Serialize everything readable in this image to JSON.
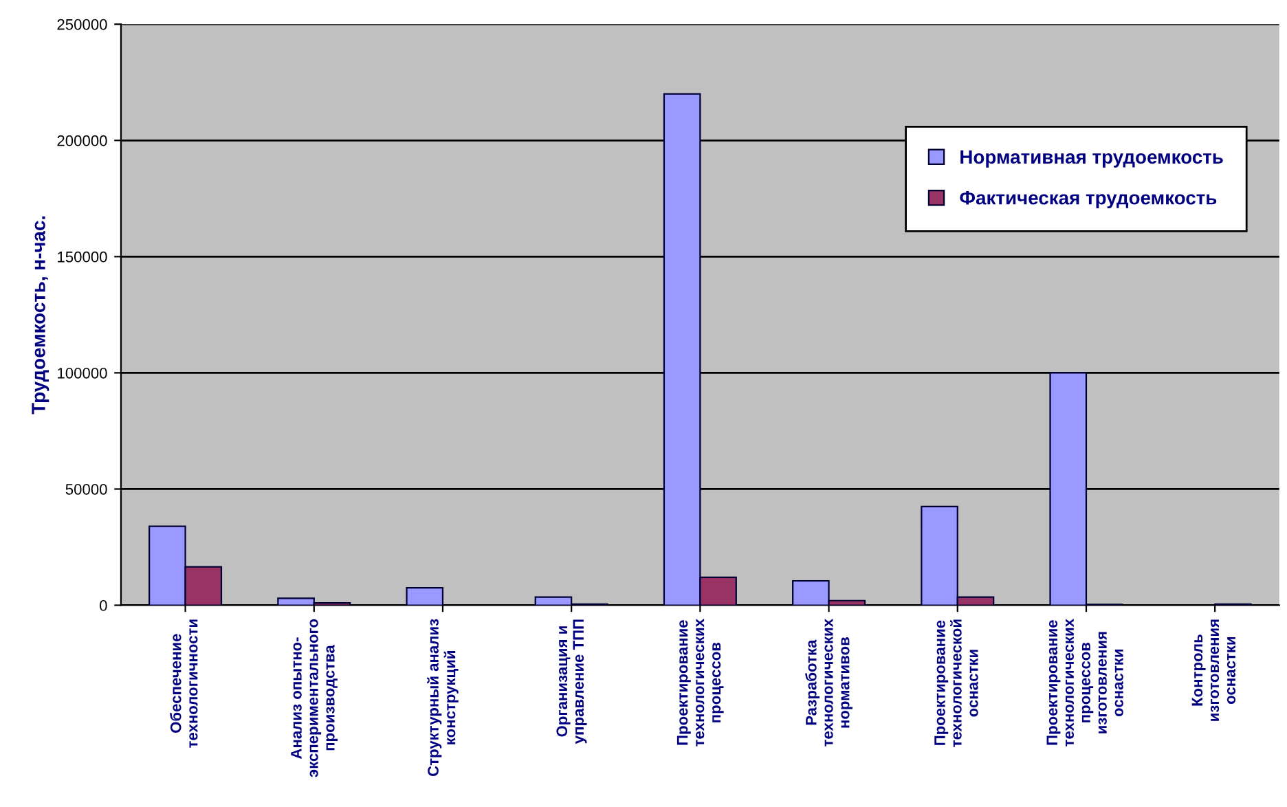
{
  "chart_data": {
    "type": "bar",
    "ylabel": "Трудоемкость, н-час.",
    "categories": [
      "Обеспечение\nтехнологичности",
      "Анализ опытно-\nэкспериментального\nпроизводства",
      "Структурный анализ\nконструкций",
      "Организация и\nуправление ТПП",
      "Проектирование\nтехнологических\nпроцессов",
      "Разработка\nтехнологических\nнормативов",
      "Проектирование\nтехнологической\nоснастки",
      "Проектирование\nтехнологических\nпроцессов\nизготовления\nоснастки",
      "Контроль\nизготовления\nоснастки"
    ],
    "series": [
      {
        "name": "Нормативная трудоемкость",
        "color": "#9999ff",
        "values": [
          34000,
          3000,
          7500,
          3500,
          220000,
          10500,
          42500,
          100000,
          null
        ]
      },
      {
        "name": "Фактическая трудоемкость",
        "color": "#993366",
        "values": [
          16500,
          1000,
          null,
          500,
          12000,
          2000,
          3500,
          300,
          500
        ]
      }
    ],
    "ylim": [
      0,
      250000
    ],
    "yticks": [
      0,
      50000,
      100000,
      150000,
      200000,
      250000
    ],
    "grid": "y",
    "legend": "top right"
  }
}
